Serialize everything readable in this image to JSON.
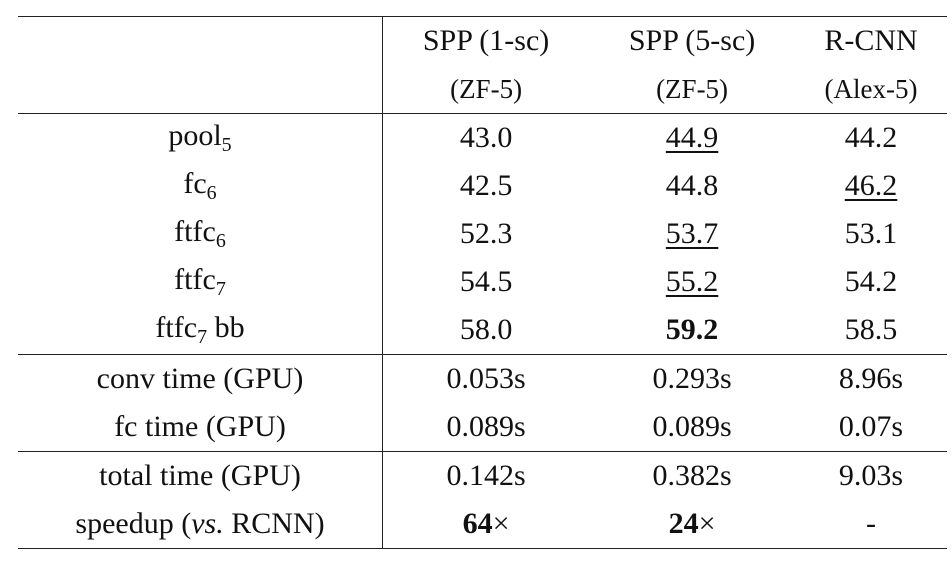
{
  "table": {
    "columns": [
      "SPP (1-sc)",
      "SPP (5-sc)",
      "R-CNN"
    ],
    "subcolumns": [
      "(ZF-5)",
      "(ZF-5)",
      "(Alex-5)"
    ],
    "sections": [
      {
        "rows": [
          {
            "label": [
              {
                "text": "pool"
              },
              {
                "text": "5",
                "style": "sub"
              }
            ],
            "cells": [
              [
                {
                  "text": "43.0"
                }
              ],
              [
                {
                  "text": "44.9",
                  "style": "underline"
                }
              ],
              [
                {
                  "text": "44.2"
                }
              ]
            ]
          },
          {
            "label": [
              {
                "text": "fc"
              },
              {
                "text": "6",
                "style": "sub"
              }
            ],
            "cells": [
              [
                {
                  "text": "42.5"
                }
              ],
              [
                {
                  "text": "44.8"
                }
              ],
              [
                {
                  "text": "46.2",
                  "style": "underline"
                }
              ]
            ]
          },
          {
            "label": [
              {
                "text": "ftfc"
              },
              {
                "text": "6",
                "style": "sub"
              }
            ],
            "cells": [
              [
                {
                  "text": "52.3"
                }
              ],
              [
                {
                  "text": "53.7",
                  "style": "underline"
                }
              ],
              [
                {
                  "text": "53.1"
                }
              ]
            ]
          },
          {
            "label": [
              {
                "text": "ftfc"
              },
              {
                "text": "7",
                "style": "sub"
              }
            ],
            "cells": [
              [
                {
                  "text": "54.5"
                }
              ],
              [
                {
                  "text": "55.2",
                  "style": "underline"
                }
              ],
              [
                {
                  "text": "54.2"
                }
              ]
            ]
          },
          {
            "label": [
              {
                "text": "ftfc"
              },
              {
                "text": "7",
                "style": "sub"
              },
              {
                "text": " bb"
              }
            ],
            "cells": [
              [
                {
                  "text": "58.0"
                }
              ],
              [
                {
                  "text": "59.2",
                  "style": "bold"
                }
              ],
              [
                {
                  "text": "58.5"
                }
              ]
            ]
          }
        ]
      },
      {
        "rows": [
          {
            "label": [
              {
                "text": "conv time (GPU)"
              }
            ],
            "cells": [
              [
                {
                  "text": "0.053s"
                }
              ],
              [
                {
                  "text": "0.293s"
                }
              ],
              [
                {
                  "text": "8.96s"
                }
              ]
            ]
          },
          {
            "label": [
              {
                "text": "fc time (GPU)"
              }
            ],
            "cells": [
              [
                {
                  "text": "0.089s"
                }
              ],
              [
                {
                  "text": "0.089s"
                }
              ],
              [
                {
                  "text": "0.07s"
                }
              ]
            ]
          }
        ]
      },
      {
        "rows": [
          {
            "label": [
              {
                "text": "total time (GPU)"
              }
            ],
            "cells": [
              [
                {
                  "text": "0.142s"
                }
              ],
              [
                {
                  "text": "0.382s"
                }
              ],
              [
                {
                  "text": "9.03s"
                }
              ]
            ]
          },
          {
            "label": [
              {
                "text": "speedup ("
              },
              {
                "text": "vs.",
                "style": "italic"
              },
              {
                "text": " RCNN)"
              }
            ],
            "cells": [
              [
                {
                  "text": "64",
                  "style": "bold"
                },
                {
                  "text": "×"
                }
              ],
              [
                {
                  "text": "24",
                  "style": "bold"
                },
                {
                  "text": "×"
                }
              ],
              [
                {
                  "text": "-"
                }
              ]
            ]
          }
        ]
      }
    ]
  }
}
